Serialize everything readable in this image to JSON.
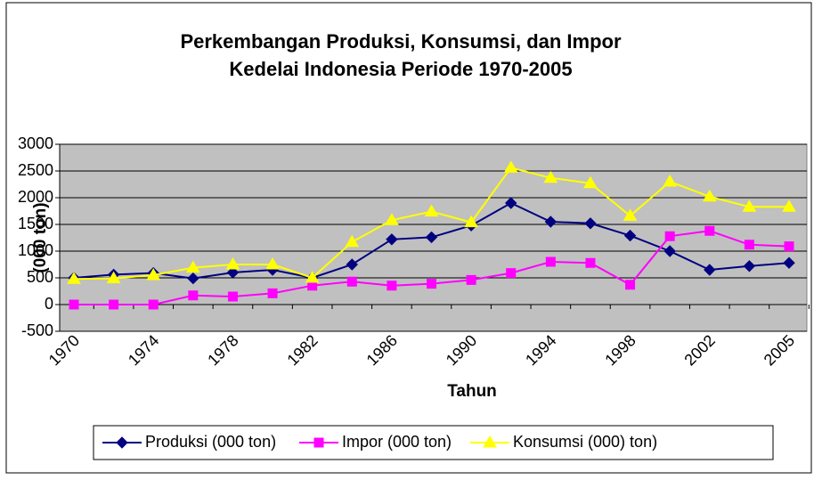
{
  "chart_data": {
    "type": "line",
    "title": [
      "Perkembangan Produksi, Konsumsi, dan Impor",
      "Kedelai Indonesia Periode 1970-2005"
    ],
    "xlabel": "Tahun",
    "ylabel": "(000 ton)",
    "categories": [
      "1970",
      null,
      "1974",
      null,
      "1978",
      null,
      "1982",
      null,
      "1986",
      null,
      "1990",
      null,
      "1994",
      null,
      "1998",
      null,
      "2002",
      null,
      "2005"
    ],
    "series": [
      {
        "name": "Produksi (000 ton)",
        "color": "#000080",
        "marker": "diamond",
        "values": [
          500,
          560,
          590,
          490,
          600,
          650,
          500,
          750,
          1220,
          1260,
          1480,
          1900,
          1550,
          1520,
          1290,
          1000,
          650,
          720,
          780
        ]
      },
      {
        "name": "Impor (000 ton)",
        "color": "#ff00ff",
        "marker": "square",
        "values": [
          0,
          0,
          0,
          170,
          150,
          210,
          355,
          430,
          355,
          390,
          460,
          590,
          800,
          780,
          370,
          1280,
          1380,
          1120,
          1090
        ]
      },
      {
        "name": "Konsumsi (000) ton)",
        "color": "#ffff00",
        "marker": "triangle",
        "values": [
          480,
          490,
          550,
          690,
          750,
          750,
          500,
          1170,
          1580,
          1740,
          1540,
          2560,
          2370,
          2270,
          1660,
          2300,
          2020,
          1830,
          1830
        ]
      }
    ],
    "ylim": [
      -500,
      3000
    ],
    "yticks": [
      -500,
      0,
      500,
      1000,
      1500,
      2000,
      2500,
      3000
    ],
    "grid": true,
    "legend": "bottom"
  }
}
